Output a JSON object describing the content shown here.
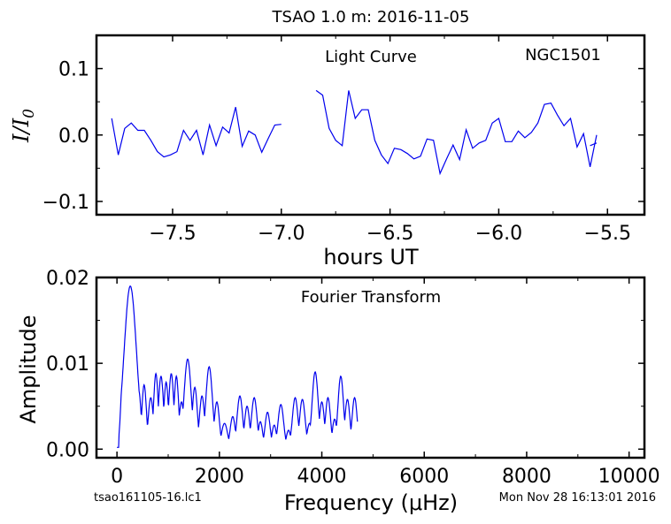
{
  "figure": {
    "title": "TSAO 1.0 m:  2016-11-05",
    "footer_left": "tsao161105-16.lc1",
    "footer_right": "Mon Nov 28 16:13:01 2016"
  },
  "chart_data": [
    {
      "type": "line",
      "label_left": "Light Curve",
      "label_right": "NGC1501",
      "xlabel": "hours UT",
      "ylabel": "I/I0",
      "xlim": [
        -7.85,
        -5.33
      ],
      "ylim": [
        -0.12,
        0.15
      ],
      "xticks": [
        -7.5,
        -7.0,
        -6.5,
        -6.0,
        -5.5
      ],
      "xticklabels": [
        "−7.5",
        "−7.0",
        "−6.5",
        "−6.0",
        "−5.5"
      ],
      "yticks": [
        -0.1,
        0.0,
        0.1
      ],
      "yticklabels": [
        "−0.1",
        "0.0",
        "0.1"
      ],
      "color": "#0000ee",
      "segments": [
        {
          "x": [
            -7.78,
            -7.75,
            -7.72,
            -7.69,
            -7.66,
            -7.63,
            -7.6,
            -7.57,
            -7.54,
            -7.51,
            -7.48,
            -7.45,
            -7.42,
            -7.39,
            -7.36,
            -7.33,
            -7.3,
            -7.27,
            -7.24,
            -7.21,
            -7.18,
            -7.15,
            -7.12,
            -7.09,
            -7.06,
            -7.03,
            -7.0
          ],
          "y": [
            0.025,
            -0.03,
            0.01,
            0.018,
            0.007,
            0.007,
            -0.008,
            -0.025,
            -0.033,
            -0.03,
            -0.025,
            0.007,
            -0.008,
            0.007,
            -0.03,
            0.015,
            -0.016,
            0.012,
            0.003,
            0.042,
            -0.017,
            0.006,
            0.0,
            -0.026,
            -0.005,
            0.015,
            0.016
          ]
        },
        {
          "x": [
            -6.84,
            -6.81,
            -6.78,
            -6.75,
            -6.72,
            -6.69,
            -6.66,
            -6.63,
            -6.6,
            -6.57,
            -6.54,
            -6.51,
            -6.48,
            -6.45,
            -6.42,
            -6.39,
            -6.36,
            -6.33,
            -6.3,
            -6.27,
            -6.24,
            -6.21,
            -6.18,
            -6.15,
            -6.12,
            -6.09,
            -6.06,
            -6.03,
            -6.0,
            -5.97,
            -5.94,
            -5.91,
            -5.88,
            -5.85,
            -5.82,
            -5.79,
            -5.76,
            -5.73,
            -5.7,
            -5.67,
            -5.64,
            -5.61,
            -5.58,
            -5.55
          ],
          "y": [
            0.067,
            0.06,
            0.01,
            -0.008,
            -0.016,
            0.067,
            0.025,
            0.038,
            0.038,
            -0.008,
            -0.03,
            -0.043,
            -0.02,
            -0.022,
            -0.028,
            -0.036,
            -0.032,
            -0.006,
            -0.008,
            -0.058,
            -0.036,
            -0.015,
            -0.037,
            0.008,
            -0.02,
            -0.012,
            -0.008,
            0.018,
            0.025,
            -0.01,
            -0.01,
            0.006,
            -0.004,
            0.004,
            0.018,
            0.046,
            0.048,
            0.03,
            0.014,
            0.025,
            -0.018,
            0.002,
            -0.048,
            0.0
          ]
        }
      ],
      "tail": {
        "x": [
          -5.58,
          -5.55
        ],
        "y": [
          -0.016,
          -0.012
        ]
      }
    },
    {
      "type": "line",
      "label": "Fourier Transform",
      "xlabel": "Frequency (μHz)",
      "ylabel": "Amplitude",
      "xlim": [
        -400,
        10300
      ],
      "ylim": [
        -0.001,
        0.02
      ],
      "xticks": [
        0,
        2000,
        4000,
        6000,
        8000,
        10000
      ],
      "xticklabels": [
        "0",
        "2000",
        "4000",
        "6000",
        "8000",
        "10000"
      ],
      "yticks": [
        0.0,
        0.01,
        0.02
      ],
      "yticklabels": [
        "0.00",
        "0.01",
        "0.02"
      ],
      "color": "#0000ee",
      "peaks": [
        [
          260,
          0.019,
          120
        ],
        [
          420,
          0.007,
          50
        ],
        [
          530,
          0.0075,
          45
        ],
        [
          660,
          0.006,
          50
        ],
        [
          760,
          0.0088,
          45
        ],
        [
          860,
          0.0085,
          50
        ],
        [
          960,
          0.0078,
          45
        ],
        [
          1060,
          0.0088,
          50
        ],
        [
          1160,
          0.0085,
          45
        ],
        [
          1260,
          0.0055,
          50
        ],
        [
          1380,
          0.0105,
          70
        ],
        [
          1520,
          0.0072,
          50
        ],
        [
          1660,
          0.0062,
          50
        ],
        [
          1800,
          0.0096,
          65
        ],
        [
          1950,
          0.0055,
          50
        ],
        [
          2100,
          0.003,
          60
        ],
        [
          2260,
          0.0038,
          50
        ],
        [
          2400,
          0.0062,
          55
        ],
        [
          2540,
          0.005,
          50
        ],
        [
          2680,
          0.006,
          55
        ],
        [
          2800,
          0.0032,
          45
        ],
        [
          2940,
          0.0043,
          50
        ],
        [
          3070,
          0.0028,
          45
        ],
        [
          3200,
          0.0052,
          55
        ],
        [
          3350,
          0.0022,
          45
        ],
        [
          3480,
          0.006,
          55
        ],
        [
          3620,
          0.0058,
          55
        ],
        [
          3760,
          0.003,
          50
        ],
        [
          3870,
          0.009,
          60
        ],
        [
          4000,
          0.0055,
          50
        ],
        [
          4120,
          0.006,
          50
        ],
        [
          4250,
          0.0035,
          45
        ],
        [
          4370,
          0.0085,
          55
        ],
        [
          4500,
          0.0058,
          50
        ],
        [
          4640,
          0.006,
          50
        ]
      ],
      "x_max": 4700
    }
  ]
}
